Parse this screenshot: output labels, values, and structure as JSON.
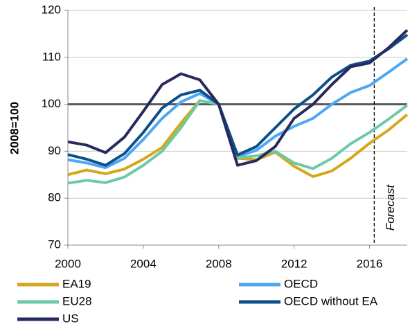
{
  "chart_data": {
    "type": "line",
    "ylabel": "2008=100",
    "x": [
      2000,
      2001,
      2002,
      2003,
      2004,
      2005,
      2006,
      2007,
      2008,
      2009,
      2010,
      2011,
      2012,
      2013,
      2014,
      2015,
      2016,
      2017,
      2018
    ],
    "series": [
      {
        "name": "EA19",
        "color": "#d4a81c",
        "values": [
          85,
          86,
          85.2,
          86.2,
          88.3,
          90.8,
          96,
          100.8,
          100,
          88.5,
          88.2,
          89.8,
          86.8,
          84.6,
          85.8,
          88.5,
          91.7,
          94.5,
          97.8
        ]
      },
      {
        "name": "OECD",
        "color": "#4ea7f2",
        "values": [
          88.2,
          87.5,
          86.5,
          88.5,
          92.5,
          97,
          100.5,
          102.3,
          100,
          88.8,
          90.2,
          93.2,
          95.3,
          97,
          100,
          102.5,
          104,
          106.8,
          109.7
        ]
      },
      {
        "name": "EU28",
        "color": "#6ccaa6",
        "values": [
          83.2,
          83.8,
          83.3,
          84.5,
          87,
          90,
          95,
          100.8,
          100,
          88.6,
          89,
          90,
          87.5,
          86.3,
          88.5,
          91.6,
          94,
          96.8,
          99.8
        ]
      },
      {
        "name": "OECD without EA",
        "color": "#0d4f8b",
        "values": [
          89.3,
          88.3,
          87,
          89.5,
          94,
          99.2,
          102,
          103,
          100,
          89.2,
          91,
          95,
          99,
          102,
          105.8,
          108.3,
          109.2,
          111.8,
          114.8
        ]
      },
      {
        "name": "US",
        "color": "#272a5e",
        "values": [
          92,
          91.3,
          89.7,
          93,
          98.5,
          104.2,
          106.5,
          105.2,
          100,
          87,
          88,
          91,
          97,
          100,
          104.2,
          108,
          108.8,
          112,
          115.8
        ]
      }
    ],
    "xlim": [
      2000,
      2018
    ],
    "xticks": [
      2000,
      2004,
      2008,
      2012,
      2016
    ],
    "ylim": [
      70,
      120
    ],
    "yticks": [
      70,
      80,
      90,
      100,
      110,
      120
    ],
    "grid": true,
    "reference_line": 100,
    "forecast_start": 2016.25,
    "annotation": "Forecast",
    "legend": "bottom"
  }
}
